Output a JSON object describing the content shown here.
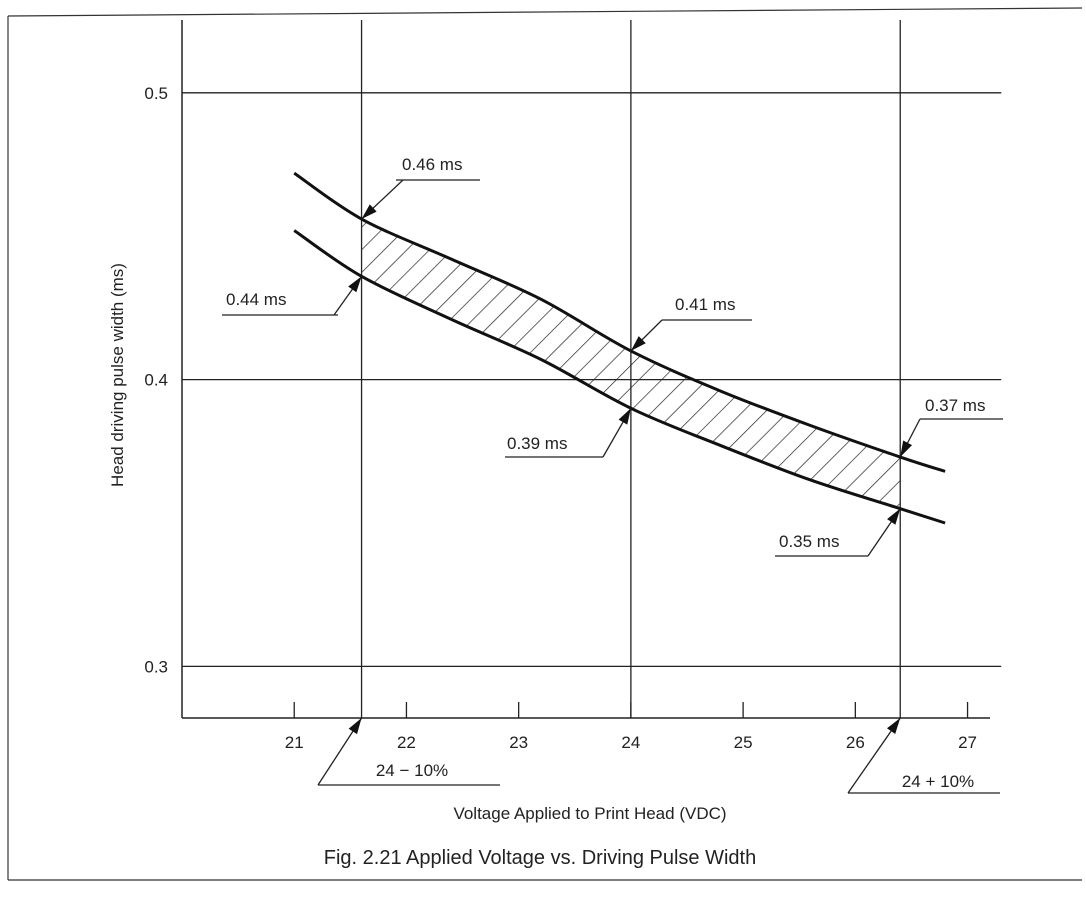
{
  "chart_data": {
    "type": "line",
    "caption": "Fig. 2.21   Applied Voltage vs. Driving Pulse Width",
    "xlabel": "Voltage Applied to Print Head (VDC)",
    "ylabel": "Head driving pulse width (ms)",
    "xlim": [
      20,
      27.2
    ],
    "ylim": [
      0.282,
      0.524
    ],
    "x_ticks": [
      21,
      22,
      23,
      24,
      25,
      26,
      27
    ],
    "y_ticks": [
      0.3,
      0.4,
      0.5
    ],
    "x_tick_labels": [
      "21",
      "22",
      "23",
      "24",
      "25",
      "26",
      "27"
    ],
    "y_tick_labels": [
      "0.3",
      "0.4",
      "0.5"
    ],
    "vertical_lines": [
      21.6,
      24,
      26.4
    ],
    "grid": true,
    "series": [
      {
        "x": [
          21.0,
          21.6,
          22.4,
          23.2,
          24.0,
          24.8,
          25.6,
          26.4,
          26.8
        ],
        "y": [
          0.472,
          0.456,
          0.442,
          0.428,
          0.41,
          0.396,
          0.384,
          0.373,
          0.368
        ]
      },
      {
        "x": [
          21.0,
          21.6,
          22.4,
          23.2,
          24.0,
          24.8,
          25.6,
          26.4,
          26.8
        ],
        "y": [
          0.452,
          0.436,
          0.421,
          0.407,
          0.39,
          0.377,
          0.365,
          0.355,
          0.35
        ]
      }
    ],
    "shaded_band": {
      "from_x": 21.6,
      "to_x": 26.4
    },
    "annotations": [
      {
        "text": "0.46 ms",
        "x": 21.6,
        "y": 0.456
      },
      {
        "text": "0.44 ms",
        "x": 21.6,
        "y": 0.436
      },
      {
        "text": "0.41 ms",
        "x": 24.0,
        "y": 0.41
      },
      {
        "text": "0.39 ms",
        "x": 24.0,
        "y": 0.39
      },
      {
        "text": "0.37 ms",
        "x": 26.4,
        "y": 0.373
      },
      {
        "text": "0.35 ms",
        "x": 26.4,
        "y": 0.355
      },
      {
        "text": "24 − 10%",
        "x": 21.6
      },
      {
        "text": "24 + 10%",
        "x": 26.4
      }
    ]
  }
}
